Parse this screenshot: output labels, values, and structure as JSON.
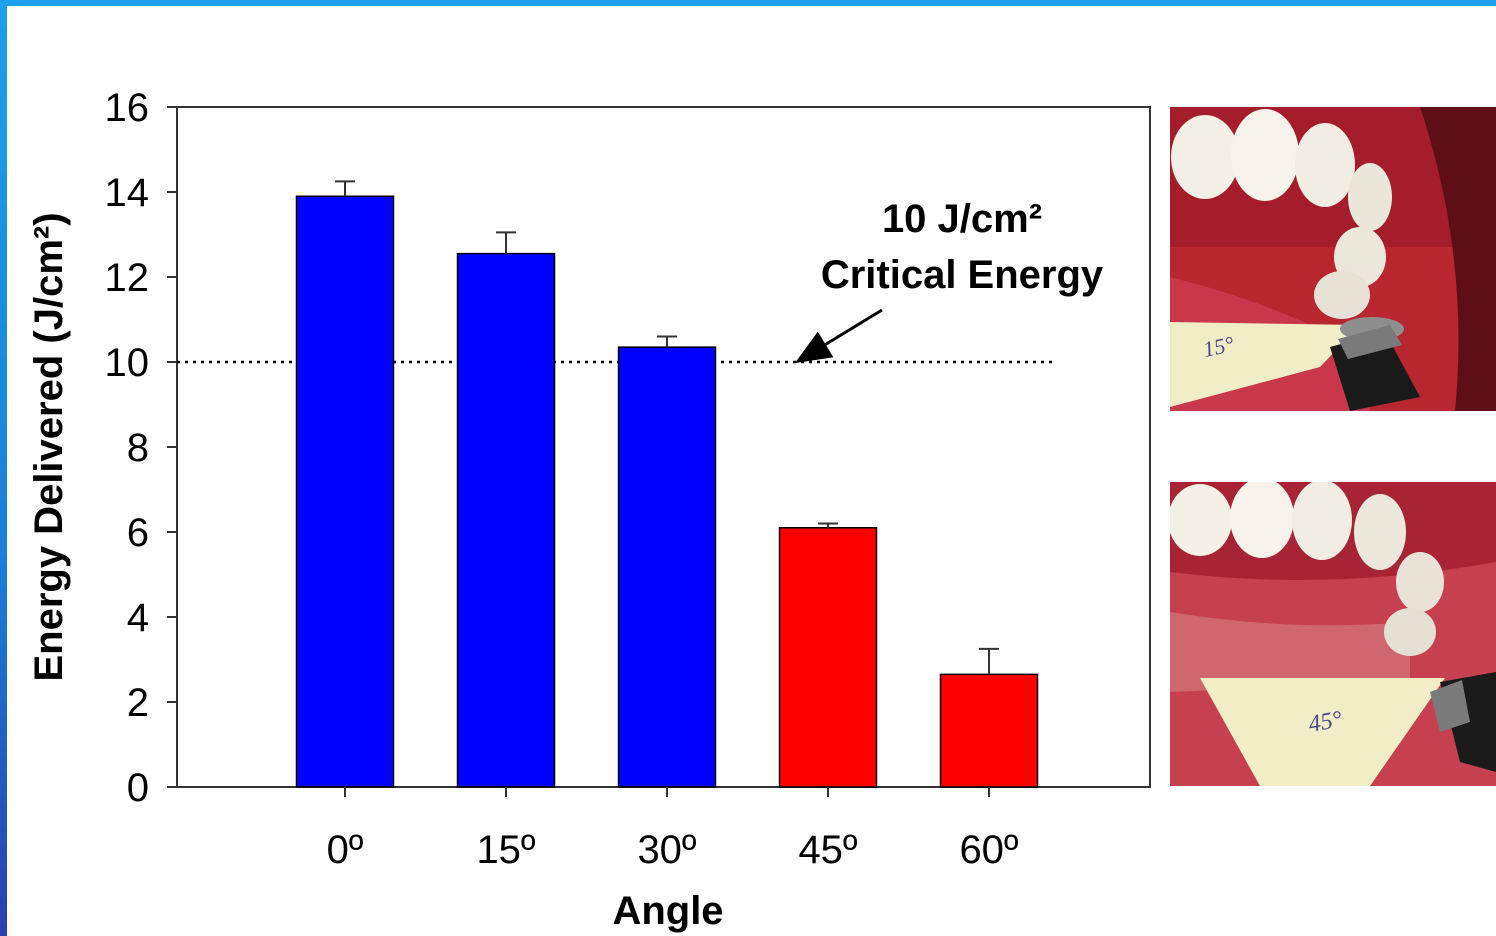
{
  "chart_data": {
    "type": "bar",
    "categories": [
      "0º",
      "15º",
      "30º",
      "45º",
      "60º"
    ],
    "values": [
      13.9,
      12.55,
      10.35,
      6.1,
      2.65
    ],
    "errors": [
      0.35,
      0.5,
      0.25,
      0.1,
      0.6
    ],
    "bar_colors": [
      "#0000ff",
      "#0000ff",
      "#0000ff",
      "#ff0000",
      "#ff0000"
    ],
    "xlabel": "Angle",
    "ylabel": "Energy Delivered (J/cm²)",
    "ylim": [
      0,
      16
    ],
    "yticks": [
      "0",
      "2",
      "4",
      "6",
      "8",
      "10",
      "12",
      "14",
      "16"
    ],
    "grid": false,
    "reference_line": {
      "value": 10,
      "style": "dotted"
    },
    "annotation": {
      "line1": "10 J/cm²",
      "line2": "Critical Energy"
    }
  },
  "photos": [
    {
      "label": "15°",
      "icon": "dental-model-photo-15-degree"
    },
    {
      "label": "45°",
      "icon": "dental-model-photo-45-degree"
    }
  ],
  "colors": {
    "frame": "#1da1e8",
    "blue_bar": "#0000ff",
    "red_bar": "#ff0000"
  }
}
